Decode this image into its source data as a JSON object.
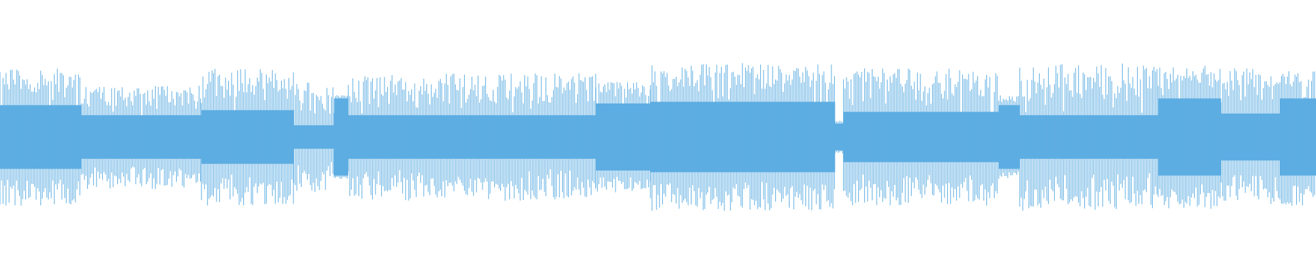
{
  "waveform": {
    "icon": "audio-waveform-icon",
    "colors": {
      "wave": "#5dade2",
      "background": "#ffffff"
    }
  }
}
